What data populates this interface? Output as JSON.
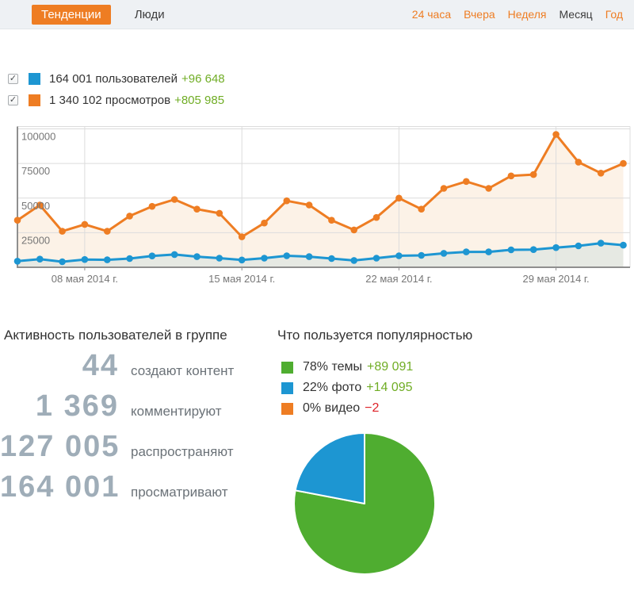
{
  "colors": {
    "accent_orange": "#ee7d23",
    "series_blue": "#1d96d2",
    "pie_green": "#4fad30",
    "delta_green": "#70ad25",
    "delta_red": "#de2127",
    "stat_number_gray": "#9fadb8",
    "topbar_bg": "#eef1f4",
    "axis_gray": "#8f8f8f",
    "gridline_gray": "#dcdcdc"
  },
  "topbar": {
    "tabs": [
      {
        "label": "Тенденции",
        "active": true
      },
      {
        "label": "Люди",
        "active": false
      }
    ],
    "ranges": [
      {
        "label": "24 часа",
        "active": false
      },
      {
        "label": "Вчера",
        "active": false
      },
      {
        "label": "Неделя",
        "active": false
      },
      {
        "label": "Месяц",
        "active": true
      },
      {
        "label": "Год",
        "active": false
      }
    ]
  },
  "series_legend": [
    {
      "check": "✓",
      "checked": true,
      "color": "#1d96d2",
      "label": "164 001 пользователей",
      "delta": "+96 648",
      "delta_color": "#70ad25"
    },
    {
      "check": "✓",
      "checked": true,
      "color": "#ee7d23",
      "label": "1 340 102 просмотров",
      "delta": "+805 985",
      "delta_color": "#70ad25"
    }
  ],
  "activity": {
    "title": "Активность пользователей в группе",
    "rows": [
      {
        "value": "44",
        "label": "создают контент"
      },
      {
        "value": "1 369",
        "label": "комментируют"
      },
      {
        "value": "127 005",
        "label": "распространяют"
      },
      {
        "value": "164 001",
        "label": "просматривают"
      }
    ]
  },
  "popularity": {
    "title": "Что пользуется популярностью",
    "legend": [
      {
        "color": "#4fad30",
        "label": "78% темы",
        "delta": "+89 091",
        "delta_color": "#70ad25"
      },
      {
        "color": "#1d96d2",
        "label": "22% фото",
        "delta": "+14 095",
        "delta_color": "#70ad25"
      },
      {
        "color": "#ee7d23",
        "label": "0% видео",
        "delta": "−2",
        "delta_color": "#de2127"
      }
    ]
  },
  "chart_data": [
    {
      "type": "line",
      "title": "",
      "x_start": "05 мая 2014",
      "x_end": "01 июня 2014",
      "x_step": "1 день",
      "num_points": 28,
      "x_tick_labels": [
        "08 мая 2014 г.",
        "15 мая 2014 г.",
        "22 мая 2014 г.",
        "29 мая 2014 г."
      ],
      "x_tick_indices": [
        3,
        10,
        17,
        24
      ],
      "yticks": [
        25000,
        50000,
        75000,
        100000
      ],
      "ylim": [
        0,
        101500
      ],
      "grid": true,
      "legend_position": "above-chart",
      "series": [
        {
          "name": "пользователей",
          "color": "#1d96d2",
          "area_fill": "#e6e9e3",
          "values": [
            4400,
            5900,
            4000,
            5600,
            5400,
            6300,
            8200,
            9200,
            7700,
            6600,
            5300,
            6600,
            8300,
            7700,
            6300,
            4900,
            6600,
            8300,
            8600,
            10100,
            11100,
            11100,
            12600,
            12800,
            14200,
            15500,
            17400,
            16000
          ]
        },
        {
          "name": "просмотров",
          "color": "#ee7d23",
          "area_fill": "#fcf2e7",
          "values": [
            34000,
            45000,
            26000,
            31000,
            26000,
            37000,
            44000,
            49000,
            42000,
            39000,
            22000,
            32000,
            48000,
            45000,
            34000,
            27000,
            36000,
            50000,
            42000,
            57000,
            62000,
            57000,
            66000,
            67000,
            96000,
            76000,
            68000,
            75000
          ]
        }
      ]
    },
    {
      "type": "pie",
      "title": "Что пользуется популярностью",
      "start_angle": "top",
      "direction": "clockwise",
      "slices": [
        {
          "label": "темы",
          "percent": 78,
          "color": "#4fad30"
        },
        {
          "label": "фото",
          "percent": 22,
          "color": "#1d96d2"
        },
        {
          "label": "видео",
          "percent": 0,
          "color": "#ee7d23"
        }
      ]
    }
  ]
}
